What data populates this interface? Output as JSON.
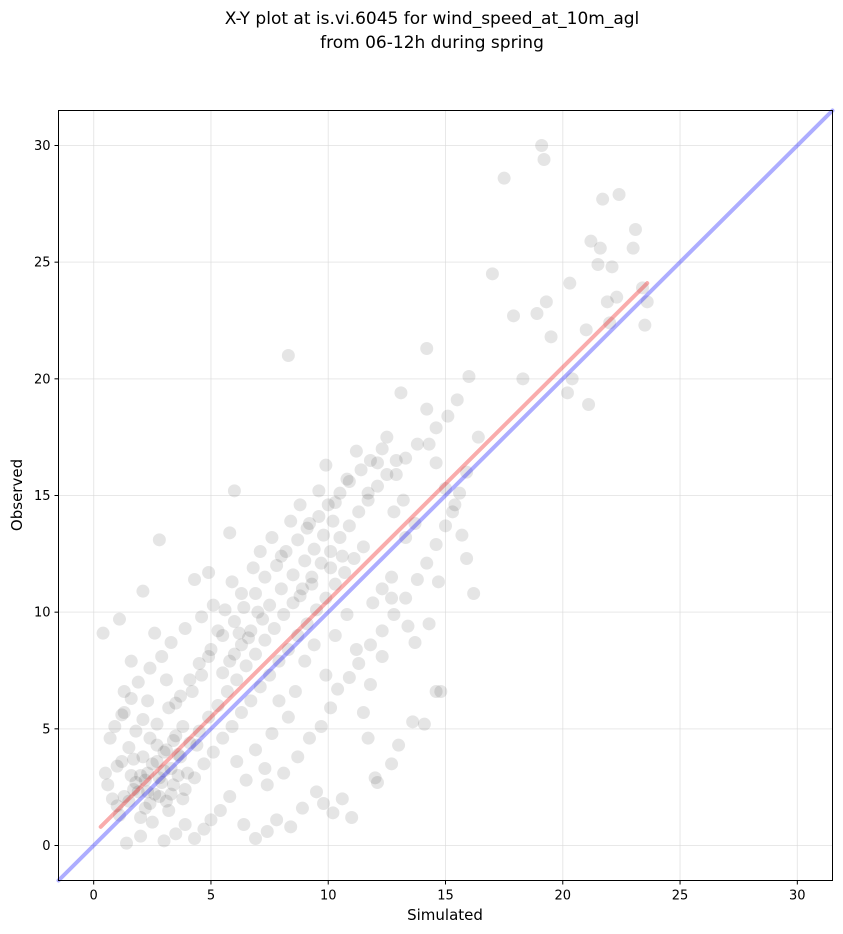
{
  "chart_data": {
    "type": "scatter",
    "title": "X-Y plot at is.vi.6045 for wind_speed_at_10m_agl",
    "subtitle": "from 06-12h during spring",
    "xlabel": "Simulated",
    "ylabel": "Observed",
    "xlim": [
      -1.5,
      31.5
    ],
    "ylim": [
      -1.5,
      31.5
    ],
    "xticks": [
      "0",
      "5",
      "10",
      "15",
      "20",
      "25",
      "30"
    ],
    "yticks": [
      "0",
      "5",
      "10",
      "15",
      "20",
      "25",
      "30"
    ],
    "grid": true,
    "legend": "none",
    "point_color": "#000000",
    "point_alpha": 0.1,
    "points": [
      [
        1.4,
        0.1
      ],
      [
        2.0,
        0.4
      ],
      [
        2.5,
        1.0
      ],
      [
        3.2,
        1.5
      ],
      [
        0.8,
        2.0
      ],
      [
        1.7,
        2.4
      ],
      [
        2.2,
        2.8
      ],
      [
        3.0,
        3.2
      ],
      [
        3.6,
        3.9
      ],
      [
        1.0,
        3.4
      ],
      [
        1.5,
        4.2
      ],
      [
        2.4,
        4.6
      ],
      [
        0.6,
        2.6
      ],
      [
        2.8,
        2.1
      ],
      [
        3.4,
        2.6
      ],
      [
        4.0,
        3.1
      ],
      [
        4.4,
        4.3
      ],
      [
        3.8,
        5.1
      ],
      [
        2.1,
        5.4
      ],
      [
        1.2,
        5.6
      ],
      [
        0.5,
        3.1
      ],
      [
        0.4,
        9.1
      ],
      [
        1.1,
        9.7
      ],
      [
        1.6,
        7.9
      ],
      [
        2.6,
        9.1
      ],
      [
        2.8,
        13.1
      ],
      [
        2.1,
        10.9
      ],
      [
        1.3,
        6.6
      ],
      [
        2.3,
        6.2
      ],
      [
        3.1,
        7.1
      ],
      [
        3.5,
        6.1
      ],
      [
        4.2,
        6.6
      ],
      [
        4.6,
        7.3
      ],
      [
        4.9,
        8.1
      ],
      [
        5.3,
        9.2
      ],
      [
        5.6,
        10.1
      ],
      [
        5.9,
        11.3
      ],
      [
        6.3,
        10.8
      ],
      [
        6.8,
        11.9
      ],
      [
        7.1,
        12.6
      ],
      [
        7.6,
        13.2
      ],
      [
        8.0,
        12.4
      ],
      [
        8.4,
        13.9
      ],
      [
        8.8,
        14.6
      ],
      [
        9.2,
        13.8
      ],
      [
        9.6,
        15.2
      ],
      [
        9.9,
        16.3
      ],
      [
        10.3,
        14.7
      ],
      [
        10.8,
        15.7
      ],
      [
        11.2,
        16.9
      ],
      [
        11.7,
        15.1
      ],
      [
        12.1,
        16.4
      ],
      [
        12.5,
        17.5
      ],
      [
        12.9,
        15.9
      ],
      [
        13.3,
        16.6
      ],
      [
        13.8,
        17.2
      ],
      [
        14.2,
        18.7
      ],
      [
        14.6,
        17.9
      ],
      [
        15.1,
        18.4
      ],
      [
        15.5,
        19.1
      ],
      [
        16.0,
        20.1
      ],
      [
        16.4,
        17.5
      ],
      [
        17.0,
        24.5
      ],
      [
        17.5,
        28.6
      ],
      [
        17.9,
        22.7
      ],
      [
        18.3,
        20.0
      ],
      [
        18.9,
        22.8
      ],
      [
        19.1,
        30.0
      ],
      [
        19.2,
        29.4
      ],
      [
        19.3,
        23.3
      ],
      [
        19.5,
        21.8
      ],
      [
        20.3,
        24.1
      ],
      [
        20.2,
        19.4
      ],
      [
        20.4,
        20.0
      ],
      [
        21.0,
        22.1
      ],
      [
        21.1,
        18.9
      ],
      [
        21.2,
        25.9
      ],
      [
        21.5,
        24.9
      ],
      [
        21.6,
        25.6
      ],
      [
        21.7,
        27.7
      ],
      [
        21.9,
        23.3
      ],
      [
        22.0,
        22.4
      ],
      [
        22.1,
        24.8
      ],
      [
        22.3,
        23.5
      ],
      [
        22.4,
        27.9
      ],
      [
        23.0,
        25.6
      ],
      [
        23.1,
        26.4
      ],
      [
        23.4,
        23.9
      ],
      [
        23.5,
        22.3
      ],
      [
        23.6,
        23.3
      ],
      [
        8.3,
        21.0
      ],
      [
        14.2,
        21.3
      ],
      [
        13.1,
        19.4
      ],
      [
        14.3,
        17.2
      ],
      [
        14.6,
        16.4
      ],
      [
        15.0,
        15.3
      ],
      [
        15.4,
        14.6
      ],
      [
        15.7,
        13.3
      ],
      [
        15.9,
        12.3
      ],
      [
        16.2,
        10.8
      ],
      [
        14.7,
        11.3
      ],
      [
        14.3,
        9.5
      ],
      [
        13.7,
        8.7
      ],
      [
        13.4,
        9.4
      ],
      [
        12.7,
        10.6
      ],
      [
        12.3,
        8.1
      ],
      [
        11.8,
        6.9
      ],
      [
        11.5,
        5.7
      ],
      [
        11.2,
        8.4
      ],
      [
        10.8,
        9.9
      ],
      [
        10.3,
        9.0
      ],
      [
        9.9,
        7.3
      ],
      [
        9.4,
        8.6
      ],
      [
        9.0,
        7.9
      ],
      [
        8.6,
        6.6
      ],
      [
        8.3,
        5.5
      ],
      [
        7.9,
        6.2
      ],
      [
        7.6,
        4.8
      ],
      [
        7.3,
        3.3
      ],
      [
        6.9,
        4.1
      ],
      [
        6.5,
        2.8
      ],
      [
        6.1,
        3.6
      ],
      [
        5.8,
        2.1
      ],
      [
        5.4,
        1.5
      ],
      [
        5.0,
        1.1
      ],
      [
        4.7,
        0.7
      ],
      [
        4.3,
        0.3
      ],
      [
        3.9,
        0.9
      ],
      [
        3.5,
        0.5
      ],
      [
        3.0,
        0.2
      ],
      [
        14.6,
        6.6
      ],
      [
        14.8,
        6.6
      ],
      [
        14.1,
        5.2
      ],
      [
        13.6,
        5.3
      ],
      [
        13.0,
        4.3
      ],
      [
        12.7,
        3.5
      ],
      [
        12.1,
        2.7
      ],
      [
        12.0,
        2.9
      ],
      [
        11.7,
        4.6
      ],
      [
        11.0,
        1.2
      ],
      [
        10.6,
        2.0
      ],
      [
        10.2,
        1.4
      ],
      [
        9.8,
        1.8
      ],
      [
        9.5,
        2.3
      ],
      [
        8.9,
        1.6
      ],
      [
        8.4,
        0.8
      ],
      [
        7.8,
        1.1
      ],
      [
        7.4,
        0.6
      ],
      [
        6.9,
        0.3
      ],
      [
        6.4,
        0.9
      ],
      [
        6.0,
        15.2
      ],
      [
        5.8,
        13.4
      ],
      [
        4.9,
        11.7
      ],
      [
        4.3,
        11.4
      ],
      [
        5.1,
        10.3
      ],
      [
        4.6,
        9.8
      ],
      [
        3.9,
        9.3
      ],
      [
        3.3,
        8.7
      ],
      [
        2.9,
        8.1
      ],
      [
        2.4,
        7.6
      ],
      [
        1.9,
        7.0
      ],
      [
        1.6,
        6.3
      ],
      [
        1.3,
        5.7
      ],
      [
        0.9,
        5.1
      ],
      [
        0.7,
        4.6
      ],
      [
        1.8,
        4.9
      ],
      [
        2.7,
        5.2
      ],
      [
        3.2,
        5.9
      ],
      [
        3.7,
        6.4
      ],
      [
        4.1,
        7.1
      ],
      [
        4.5,
        7.8
      ],
      [
        5.0,
        8.4
      ],
      [
        5.5,
        9.0
      ],
      [
        6.0,
        9.6
      ],
      [
        6.4,
        10.2
      ],
      [
        6.9,
        10.8
      ],
      [
        7.3,
        11.5
      ],
      [
        7.8,
        12.0
      ],
      [
        8.2,
        12.6
      ],
      [
        8.7,
        13.1
      ],
      [
        9.1,
        13.6
      ],
      [
        9.6,
        14.1
      ],
      [
        10.0,
        14.6
      ],
      [
        10.5,
        15.1
      ],
      [
        10.9,
        15.6
      ],
      [
        11.4,
        16.1
      ],
      [
        11.8,
        16.5
      ],
      [
        12.3,
        17.0
      ],
      [
        12.8,
        14.3
      ],
      [
        13.2,
        14.8
      ],
      [
        2.2,
        1.6
      ],
      [
        2.6,
        2.2
      ],
      [
        2.9,
        2.7
      ],
      [
        3.3,
        3.3
      ],
      [
        3.7,
        3.8
      ],
      [
        4.1,
        4.4
      ],
      [
        4.5,
        4.9
      ],
      [
        4.9,
        5.5
      ],
      [
        5.3,
        6.0
      ],
      [
        5.7,
        6.6
      ],
      [
        6.1,
        7.1
      ],
      [
        6.5,
        7.7
      ],
      [
        6.9,
        8.2
      ],
      [
        7.3,
        8.8
      ],
      [
        7.7,
        9.3
      ],
      [
        8.1,
        9.9
      ],
      [
        8.5,
        10.4
      ],
      [
        8.9,
        11.0
      ],
      [
        9.3,
        11.5
      ],
      [
        9.7,
        12.1
      ],
      [
        10.1,
        12.6
      ],
      [
        10.5,
        13.2
      ],
      [
        10.9,
        13.7
      ],
      [
        11.3,
        14.3
      ],
      [
        11.7,
        14.8
      ],
      [
        12.1,
        15.4
      ],
      [
        12.5,
        15.9
      ],
      [
        12.9,
        16.5
      ],
      [
        13.3,
        13.2
      ],
      [
        13.7,
        13.8
      ],
      [
        1.1,
        1.3
      ],
      [
        1.5,
        1.9
      ],
      [
        1.9,
        2.3
      ],
      [
        2.3,
        3.1
      ],
      [
        2.7,
        3.6
      ],
      [
        3.1,
        4.1
      ],
      [
        3.5,
        4.7
      ],
      [
        3.9,
        2.4
      ],
      [
        4.3,
        2.9
      ],
      [
        4.7,
        3.5
      ],
      [
        5.1,
        4.0
      ],
      [
        5.5,
        4.6
      ],
      [
        5.9,
        5.1
      ],
      [
        6.3,
        5.7
      ],
      [
        6.7,
        6.2
      ],
      [
        7.1,
        6.8
      ],
      [
        7.5,
        7.3
      ],
      [
        7.9,
        7.9
      ],
      [
        8.3,
        8.4
      ],
      [
        8.7,
        9.0
      ],
      [
        9.1,
        9.5
      ],
      [
        9.5,
        10.1
      ],
      [
        9.9,
        10.6
      ],
      [
        10.3,
        11.2
      ],
      [
        10.7,
        11.7
      ],
      [
        11.1,
        12.3
      ],
      [
        11.5,
        12.8
      ],
      [
        11.9,
        10.4
      ],
      [
        12.3,
        11.0
      ],
      [
        12.7,
        11.5
      ],
      [
        2.0,
        3.0
      ],
      [
        2.5,
        3.5
      ],
      [
        3.0,
        4.0
      ],
      [
        1.8,
        2.7
      ],
      [
        2.3,
        2.3
      ],
      [
        2.8,
        2.9
      ],
      [
        3.3,
        2.2
      ],
      [
        3.6,
        3.0
      ],
      [
        2.1,
        3.8
      ],
      [
        1.6,
        3.0
      ],
      [
        2.7,
        4.3
      ],
      [
        3.4,
        4.5
      ],
      [
        2.0,
        1.2
      ],
      [
        2.4,
        1.8
      ],
      [
        3.1,
        1.9
      ],
      [
        3.8,
        2.0
      ],
      [
        1.3,
        2.1
      ],
      [
        1.0,
        1.7
      ],
      [
        1.2,
        3.6
      ],
      [
        1.7,
        3.7
      ],
      [
        6.0,
        8.2
      ],
      [
        6.3,
        8.6
      ],
      [
        6.7,
        9.2
      ],
      [
        7.2,
        9.7
      ],
      [
        7.5,
        10.3
      ],
      [
        7.0,
        10.0
      ],
      [
        6.6,
        8.9
      ],
      [
        5.8,
        7.9
      ],
      [
        5.5,
        7.4
      ],
      [
        6.2,
        9.1
      ],
      [
        8.0,
        11.0
      ],
      [
        8.5,
        11.6
      ],
      [
        9.0,
        12.2
      ],
      [
        9.4,
        12.7
      ],
      [
        9.8,
        13.3
      ],
      [
        10.2,
        13.9
      ],
      [
        8.8,
        10.7
      ],
      [
        9.3,
        11.2
      ],
      [
        10.1,
        11.9
      ],
      [
        10.6,
        12.4
      ],
      [
        7.4,
        2.6
      ],
      [
        8.1,
        3.1
      ],
      [
        8.7,
        3.8
      ],
      [
        9.2,
        4.6
      ],
      [
        9.7,
        5.1
      ],
      [
        10.1,
        5.9
      ],
      [
        10.4,
        6.7
      ],
      [
        10.9,
        7.2
      ],
      [
        11.3,
        7.8
      ],
      [
        11.8,
        8.6
      ],
      [
        12.3,
        9.2
      ],
      [
        12.8,
        9.9
      ],
      [
        13.3,
        10.6
      ],
      [
        13.8,
        11.4
      ],
      [
        14.2,
        12.1
      ],
      [
        14.6,
        12.9
      ],
      [
        15.0,
        13.7
      ],
      [
        15.3,
        14.3
      ],
      [
        15.6,
        15.1
      ],
      [
        15.9,
        16.0
      ]
    ],
    "lines": [
      {
        "color": "#0000ff",
        "alpha": 0.32,
        "x": [
          -1.5,
          31.5
        ],
        "y": [
          -1.5,
          31.5
        ]
      },
      {
        "color": "#ee1111",
        "alpha": 0.35,
        "x": [
          0.3,
          23.6
        ],
        "y": [
          0.8,
          24.1
        ]
      }
    ]
  }
}
